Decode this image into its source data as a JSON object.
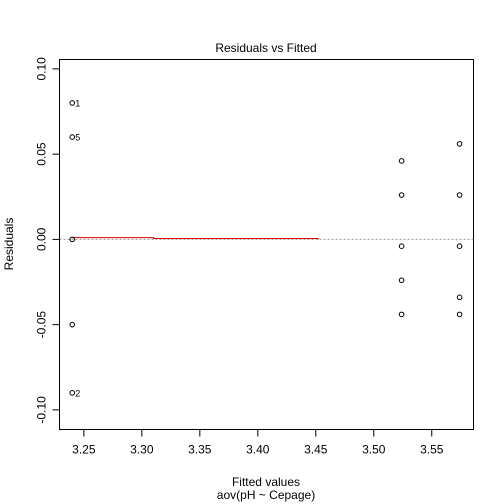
{
  "chart_data": {
    "type": "scatter",
    "title": "Residuals vs Fitted",
    "xlabel": "Fitted values",
    "xlabel_sub": "aov(pH ~ Cepage)",
    "ylabel": "Residuals",
    "xlim": [
      3.229,
      3.586
    ],
    "ylim": [
      -0.1115,
      0.1055
    ],
    "x_ticks": [
      3.25,
      3.3,
      3.35,
      3.4,
      3.45,
      3.5,
      3.55
    ],
    "x_tick_labels": [
      "3.25",
      "3.30",
      "3.35",
      "3.40",
      "3.45",
      "3.50",
      "3.55"
    ],
    "y_ticks": [
      -0.1,
      -0.05,
      0.0,
      0.05,
      0.1
    ],
    "y_tick_labels": [
      "-0.10",
      "-0.05",
      "0.00",
      "0.05",
      "0.10"
    ],
    "grid": false,
    "points": [
      {
        "x": 3.24,
        "y": 0.08,
        "label": "1"
      },
      {
        "x": 3.24,
        "y": 0.06,
        "label": "5"
      },
      {
        "x": 3.24,
        "y": 0.0,
        "label": ""
      },
      {
        "x": 3.24,
        "y": -0.05,
        "label": ""
      },
      {
        "x": 3.24,
        "y": -0.09,
        "label": "2"
      },
      {
        "x": 3.524,
        "y": 0.046,
        "label": ""
      },
      {
        "x": 3.524,
        "y": 0.026,
        "label": ""
      },
      {
        "x": 3.524,
        "y": -0.004,
        "label": ""
      },
      {
        "x": 3.524,
        "y": -0.024,
        "label": ""
      },
      {
        "x": 3.524,
        "y": -0.044,
        "label": ""
      },
      {
        "x": 3.574,
        "y": 0.056,
        "label": ""
      },
      {
        "x": 3.574,
        "y": 0.026,
        "label": ""
      },
      {
        "x": 3.574,
        "y": -0.004,
        "label": ""
      },
      {
        "x": 3.574,
        "y": -0.034,
        "label": ""
      },
      {
        "x": 3.574,
        "y": -0.044,
        "label": ""
      }
    ],
    "smooth_line": {
      "color": "#dd0000",
      "points": [
        [
          3.24,
          0.001
        ],
        [
          3.31,
          0.001
        ],
        [
          3.31,
          0.0005
        ],
        [
          3.452,
          0.0005
        ],
        [
          3.452,
          0.0
        ]
      ]
    },
    "reference_line": {
      "y": 0.0,
      "style": "dotted",
      "color": "#999999"
    }
  }
}
